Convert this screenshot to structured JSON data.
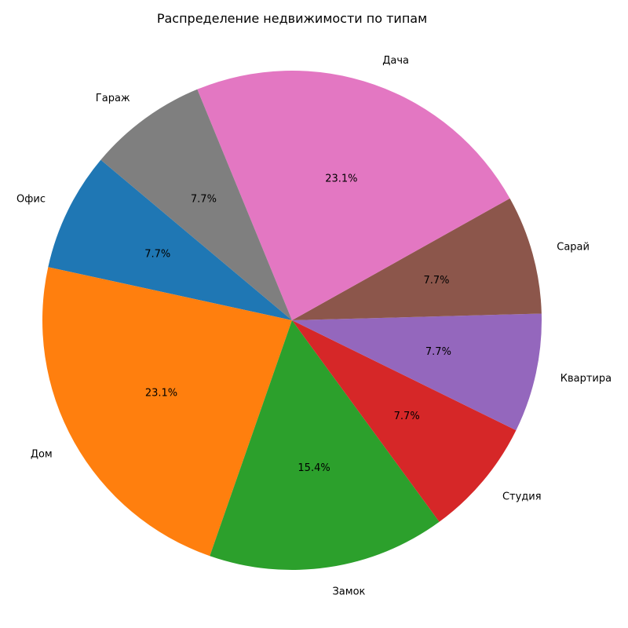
{
  "chart_data": {
    "type": "pie",
    "title": "Распределение недвижимости по типам",
    "slices": [
      {
        "label": "Офис",
        "value": 7.7,
        "pct_label": "7.7%",
        "color": "#1f77b4"
      },
      {
        "label": "Дом",
        "value": 23.1,
        "pct_label": "23.1%",
        "color": "#ff7f0e"
      },
      {
        "label": "Замок",
        "value": 15.4,
        "pct_label": "15.4%",
        "color": "#2ca02c"
      },
      {
        "label": "Студия",
        "value": 7.7,
        "pct_label": "7.7%",
        "color": "#d62728"
      },
      {
        "label": "Квартира",
        "value": 7.7,
        "pct_label": "7.7%",
        "color": "#9467bd"
      },
      {
        "label": "Сарай",
        "value": 7.7,
        "pct_label": "7.7%",
        "color": "#8c564b"
      },
      {
        "label": "Дача",
        "value": 23.1,
        "pct_label": "23.1%",
        "color": "#e377c2"
      },
      {
        "label": "Гараж",
        "value": 7.7,
        "pct_label": "7.7%",
        "color": "#7f7f7f"
      }
    ],
    "start_angle": 140,
    "direction": "counterclockwise",
    "legend": "none"
  }
}
